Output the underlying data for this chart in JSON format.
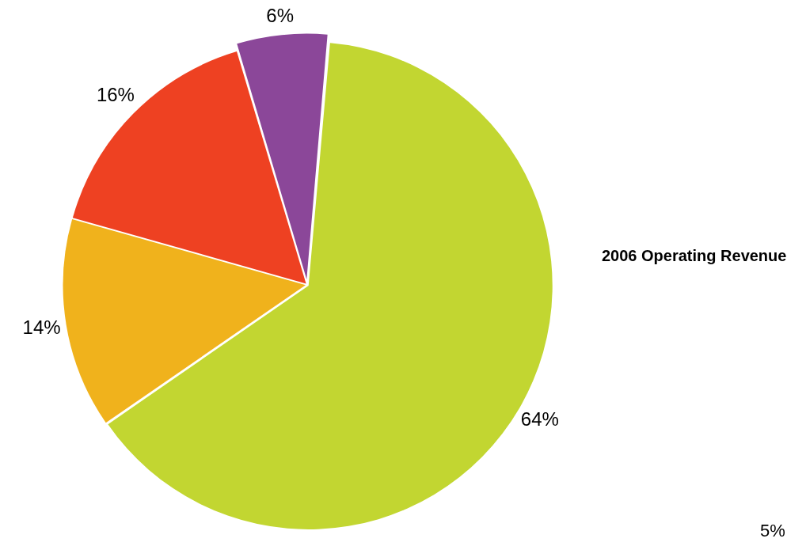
{
  "chart_data": {
    "type": "pie",
    "title": "2006 Operating Revenue",
    "categories": [
      null,
      null,
      null,
      null
    ],
    "values": [
      64,
      14,
      16,
      6
    ],
    "colors": [
      "#c2d631",
      "#f0b21c",
      "#ee4122",
      "#8b4799"
    ],
    "value_labels": [
      "64%",
      "14%",
      "16%",
      "6%"
    ],
    "annotations": [
      "5%"
    ]
  }
}
